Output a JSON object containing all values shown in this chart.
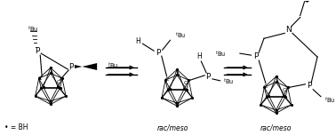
{
  "background_color": "#ffffff",
  "label_BH": "• = BH",
  "label_rac1": "rac/meso",
  "label_rac2": "rac/meso",
  "figsize": [
    3.78,
    1.52
  ],
  "dpi": 100
}
